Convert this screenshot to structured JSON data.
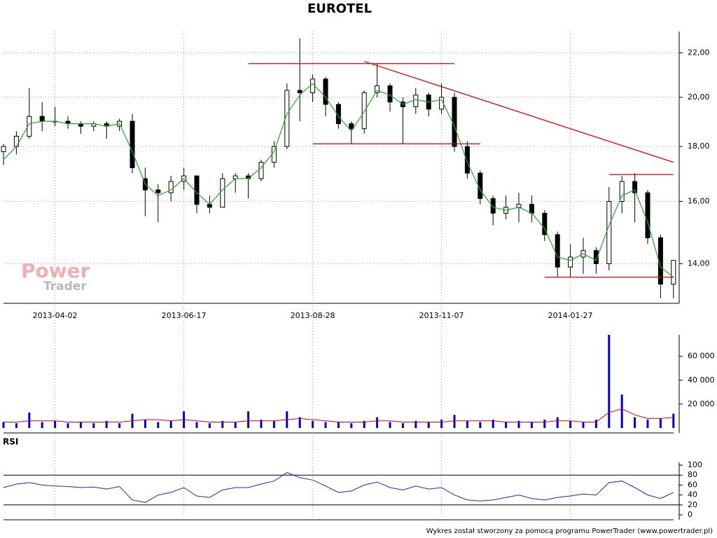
{
  "chart_data": {
    "type": "candlestick",
    "title": "EUROTEL",
    "log_scale": true,
    "grid": true,
    "up_color": "#ffffff",
    "down_color": "#000000",
    "x": [
      "2013-03-05",
      "2013-03-12",
      "2013-03-19",
      "2013-03-26",
      "2013-04-02",
      "2013-04-09",
      "2013-04-16",
      "2013-04-23",
      "2013-04-30",
      "2013-05-08",
      "2013-05-15",
      "2013-05-22",
      "2013-05-29",
      "2013-06-07",
      "2013-06-17",
      "2013-06-24",
      "2013-07-01",
      "2013-07-08",
      "2013-07-15",
      "2013-07-22",
      "2013-07-29",
      "2013-08-05",
      "2013-08-12",
      "2013-08-19",
      "2013-08-28",
      "2013-09-04",
      "2013-09-11",
      "2013-09-18",
      "2013-09-25",
      "2013-10-02",
      "2013-10-09",
      "2013-10-16",
      "2013-10-23",
      "2013-10-30",
      "2013-11-07",
      "2013-11-14",
      "2013-11-21",
      "2013-11-28",
      "2013-12-05",
      "2013-12-12",
      "2013-12-19",
      "2013-12-30",
      "2014-01-08",
      "2014-01-17",
      "2014-01-27",
      "2014-02-03",
      "2014-02-10",
      "2014-02-17",
      "2014-02-24",
      "2014-03-03",
      "2014-03-10",
      "2014-03-17",
      "2014-03-24"
    ],
    "open": [
      17.8,
      18.0,
      18.4,
      19.2,
      19.0,
      19.0,
      18.9,
      18.8,
      18.9,
      18.8,
      19.0,
      16.8,
      16.4,
      16.3,
      16.7,
      16.9,
      15.9,
      15.8,
      16.8,
      16.9,
      16.8,
      17.4,
      18.0,
      20.3,
      20.2,
      20.8,
      19.7,
      18.9,
      18.7,
      20.2,
      20.5,
      19.8,
      19.6,
      20.1,
      19.5,
      20.0,
      18.0,
      17.0,
      16.1,
      15.6,
      15.8,
      15.9,
      15.6,
      14.9,
      13.9,
      14.2,
      14.4,
      14.0,
      16.0,
      16.7,
      16.3,
      14.8,
      13.4
    ],
    "high": [
      18.1,
      18.6,
      20.4,
      19.8,
      19.6,
      19.2,
      19.0,
      19.0,
      19.0,
      19.1,
      19.3,
      17.2,
      16.6,
      16.9,
      17.2,
      16.9,
      16.2,
      17.0,
      17.0,
      17.0,
      17.5,
      18.2,
      20.6,
      22.7,
      21.0,
      20.9,
      19.8,
      19.0,
      20.3,
      21.5,
      20.6,
      20.0,
      20.4,
      20.2,
      20.6,
      20.2,
      18.2,
      17.1,
      16.2,
      16.2,
      16.3,
      16.2,
      15.7,
      15.0,
      14.6,
      14.8,
      14.5,
      16.5,
      16.9,
      17.0,
      16.4,
      14.9,
      14.1
    ],
    "low": [
      17.3,
      17.7,
      18.3,
      18.6,
      18.8,
      18.7,
      18.5,
      18.6,
      18.3,
      18.6,
      17.0,
      15.5,
      15.3,
      16.0,
      16.4,
      15.6,
      15.6,
      15.8,
      16.3,
      16.1,
      16.7,
      17.2,
      17.9,
      19.0,
      19.8,
      19.2,
      18.7,
      18.1,
      18.5,
      20.0,
      19.4,
      18.1,
      19.3,
      19.2,
      19.3,
      17.8,
      16.8,
      15.9,
      15.2,
      15.4,
      15.3,
      15.3,
      14.7,
      13.6,
      13.6,
      13.7,
      13.7,
      13.8,
      15.6,
      15.3,
      14.6,
      13.0,
      13.0
    ],
    "close": [
      18.0,
      18.4,
      19.2,
      19.0,
      19.0,
      18.9,
      18.8,
      18.9,
      18.8,
      19.0,
      17.2,
      16.4,
      16.3,
      16.7,
      16.9,
      15.9,
      15.8,
      16.8,
      16.9,
      16.8,
      17.4,
      18.0,
      20.3,
      20.2,
      20.8,
      19.7,
      18.9,
      18.7,
      20.2,
      20.5,
      19.8,
      19.6,
      20.1,
      19.5,
      20.0,
      18.0,
      17.0,
      16.1,
      15.6,
      15.8,
      15.9,
      15.6,
      14.9,
      13.9,
      14.2,
      14.4,
      14.0,
      16.0,
      16.7,
      16.3,
      14.8,
      13.4,
      14.1
    ],
    "moving_average": {
      "color": "#22aa22",
      "values": [
        17.5,
        18.0,
        18.9,
        19.0,
        19.0,
        18.9,
        18.9,
        18.9,
        18.8,
        18.9,
        17.8,
        16.6,
        16.2,
        16.4,
        16.8,
        16.3,
        15.9,
        16.4,
        16.8,
        16.8,
        17.2,
        17.8,
        19.3,
        20.1,
        20.6,
        20.0,
        19.2,
        18.6,
        19.4,
        20.3,
        20.1,
        19.7,
        19.9,
        19.8,
        19.9,
        18.8,
        17.4,
        16.4,
        15.8,
        15.7,
        15.8,
        15.6,
        15.1,
        14.2,
        14.1,
        14.3,
        14.1,
        15.2,
        16.2,
        16.4,
        15.3,
        13.9,
        13.6
      ]
    },
    "trendlines": [
      {
        "start": "2013-07-22",
        "end": "2013-11-14",
        "values": [
          21.5,
          21.5
        ],
        "color": "#e00000"
      },
      {
        "start": "2013-08-28",
        "end": "2013-11-28",
        "values": [
          18.1,
          18.1
        ],
        "color": "#e00000"
      },
      {
        "start": "2013-09-25",
        "end": "2014-03-24",
        "values": [
          21.6,
          17.4
        ],
        "color": "#e00000"
      },
      {
        "start": "2014-02-17",
        "end": "2014-03-24",
        "values": [
          16.95,
          16.95
        ],
        "color": "#e00000"
      },
      {
        "start": "2014-01-08",
        "end": "2014-03-24",
        "values": [
          13.6,
          13.6
        ],
        "color": "#e00000"
      }
    ],
    "ylim": [
      12.86,
      23.03
    ],
    "yticks": [
      {
        "value": 14,
        "label": "14,00"
      },
      {
        "value": 16,
        "label": "16,00"
      },
      {
        "value": 18,
        "label": "18,00"
      },
      {
        "value": 20,
        "label": "20,00"
      },
      {
        "value": 22,
        "label": "22,00"
      }
    ],
    "xticks": [
      "2013-04-02",
      "2013-06-17",
      "2013-08-28",
      "2013-11-07",
      "2014-01-27"
    ],
    "volume": {
      "color": "#0000cc",
      "values": [
        5000,
        4000,
        13000,
        5000,
        6000,
        4000,
        5000,
        4000,
        6000,
        4000,
        12000,
        7000,
        5000,
        6000,
        14000,
        5000,
        4000,
        6000,
        5000,
        14000,
        7000,
        6000,
        14000,
        9000,
        6000,
        5000,
        5000,
        4000,
        6000,
        9000,
        5000,
        4000,
        6000,
        5000,
        7000,
        11000,
        6000,
        5000,
        7000,
        5000,
        6000,
        5000,
        7000,
        9000,
        6000,
        5000,
        7000,
        78000,
        28000,
        9000,
        7000,
        8000,
        12000
      ],
      "average": {
        "color": "#e00000",
        "values": [
          5000,
          5000,
          6000,
          6000,
          6000,
          5000,
          5000,
          5000,
          5000,
          5000,
          6000,
          7000,
          7000,
          6000,
          7000,
          6000,
          5000,
          5000,
          5000,
          6000,
          6000,
          6000,
          7000,
          8000,
          7000,
          6000,
          5000,
          5000,
          5000,
          6000,
          6000,
          5000,
          5000,
          5000,
          5000,
          6000,
          6000,
          6000,
          6000,
          5000,
          5000,
          5000,
          5000,
          6000,
          6000,
          5000,
          5000,
          13000,
          16000,
          11000,
          8000,
          8000,
          9000
        ]
      },
      "ylim": [
        0,
        78000
      ],
      "yticks": [
        {
          "value": 20000,
          "label": "20 000"
        },
        {
          "value": 40000,
          "label": "40 000"
        },
        {
          "value": 60000,
          "label": "60 000"
        }
      ]
    },
    "rsi": {
      "label": "RSI",
      "color": "#2222cc",
      "values": [
        55,
        62,
        65,
        60,
        58,
        57,
        55,
        56,
        52,
        57,
        30,
        25,
        40,
        45,
        55,
        38,
        35,
        50,
        55,
        55,
        62,
        68,
        85,
        75,
        70,
        58,
        45,
        48,
        60,
        66,
        55,
        50,
        58,
        52,
        55,
        40,
        30,
        28,
        30,
        35,
        40,
        33,
        30,
        35,
        38,
        42,
        40,
        65,
        68,
        55,
        40,
        33,
        45
      ],
      "levels": [
        20,
        80
      ],
      "ylim": [
        0,
        100
      ],
      "yticks": [
        0,
        20,
        40,
        60,
        80,
        100
      ]
    },
    "logo": {
      "line1": "Power",
      "line2": "Trader"
    },
    "footer": "Wykres został stworzony za pomocą programu PowerTrader (www.powertrader.pl)"
  }
}
